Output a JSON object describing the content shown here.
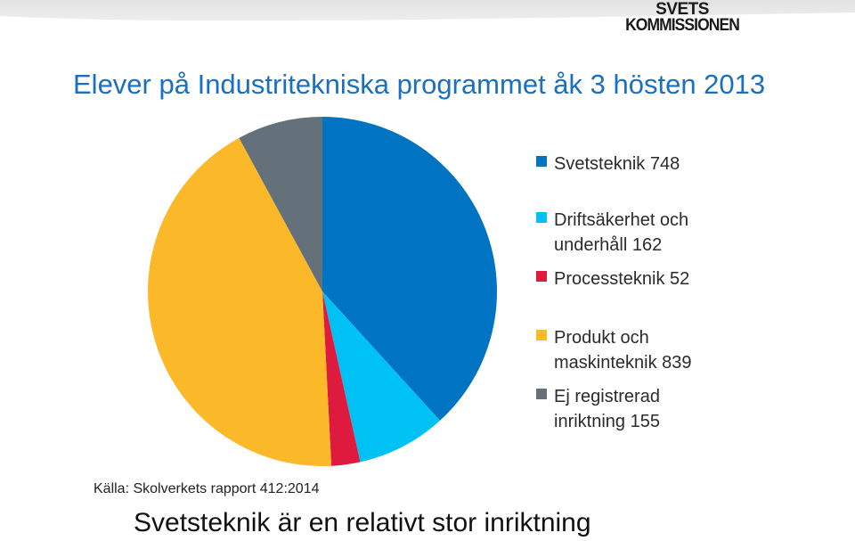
{
  "header": {
    "logo_line1": "SVETS",
    "logo_line2": "KOMMISSIONEN"
  },
  "source": "Källa: Skolverkets rapport 412:2014",
  "footer_caption": "Svetsteknik är en relativt stor inriktning",
  "chart_data": {
    "type": "pie",
    "title": "Elever på Industritekniska programmet åk 3 hösten 2013",
    "legend_position": "right",
    "slices": [
      {
        "label": "Svetsteknik 748",
        "value": 748,
        "color": "#0073c2"
      },
      {
        "label": "Driftsäkerhet och\nunderhåll 162",
        "value": 162,
        "color": "#00c1f3"
      },
      {
        "label": "Processteknik 52",
        "value": 52,
        "color": "#de1a3e"
      },
      {
        "label": "Produkt och\nmaskinteknik 839",
        "value": 839,
        "color": "#fbb829"
      },
      {
        "label": "Ej registrerad\ninriktning 155",
        "value": 155,
        "color": "#64707a"
      }
    ]
  }
}
